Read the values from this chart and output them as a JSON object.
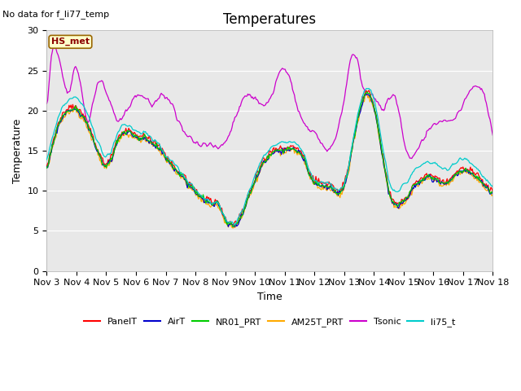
{
  "title": "Temperatures",
  "top_left_text": "No data for f_li77_temp",
  "ylabel": "Temperature",
  "xlabel": "Time",
  "inplot_label": "HS_met",
  "ylim": [
    0,
    30
  ],
  "yticks": [
    0,
    5,
    10,
    15,
    20,
    25,
    30
  ],
  "x_labels": [
    "Nov 3",
    "Nov 4",
    "Nov 5",
    "Nov 6",
    "Nov 7",
    "Nov 8",
    "Nov 9",
    "Nov 10",
    "Nov 11",
    "Nov 12",
    "Nov 13",
    "Nov 14",
    "Nov 15",
    "Nov 16",
    "Nov 17",
    "Nov 18"
  ],
  "series_colors": {
    "PanelT": "#ff0000",
    "AirT": "#0000cc",
    "NR01_PRT": "#00cc00",
    "AM25T_PRT": "#ffaa00",
    "Tsonic": "#cc00cc",
    "li75_t": "#00cccc"
  },
  "plot_bg": "#e8e8e8",
  "fig_bg": "#ffffff",
  "grid_color": "#ffffff",
  "title_fontsize": 12,
  "label_fontsize": 9,
  "tick_fontsize": 8,
  "line_width": 0.9,
  "n_points": 480
}
